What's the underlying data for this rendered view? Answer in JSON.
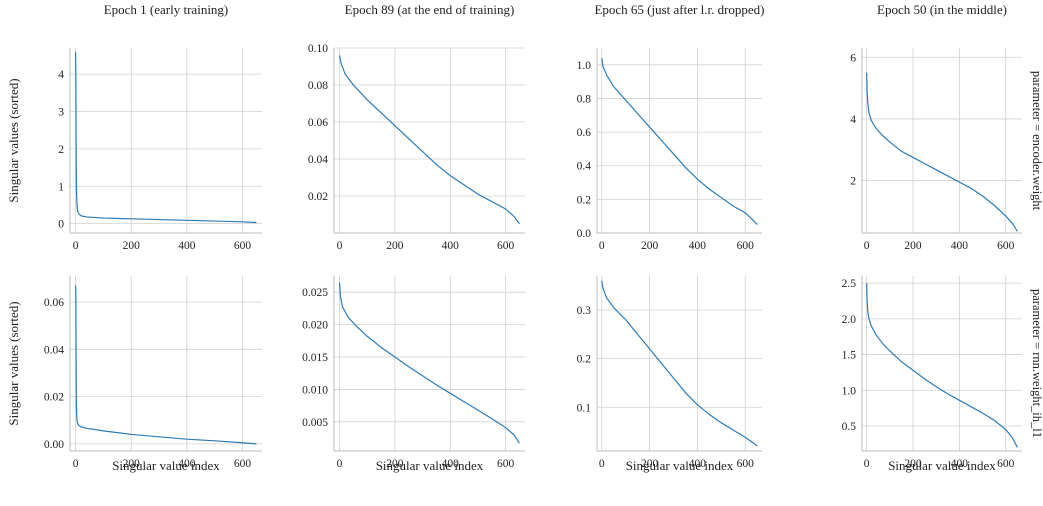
{
  "chart_data": {
    "type": "line",
    "facet_layout": {
      "rows": 2,
      "cols": 4
    },
    "colors": {
      "line": "#2b7bb9"
    },
    "xlabel": "Singular value index",
    "ylabel": "Singular values (sorted)",
    "col_titles": [
      "Epoch 1 (early training)",
      "Epoch 89 (at the end of training)",
      "Epoch 65 (just after l.r. dropped)",
      "Epoch 50 (in the middle)"
    ],
    "row_titles": [
      "parameter = encoder.weight",
      "parameter = rnn.weight_ih_l1"
    ],
    "xlim": [
      0,
      650
    ],
    "xticks": [
      0,
      200,
      400,
      600
    ],
    "panels": [
      {
        "row": 0,
        "col": 0,
        "ylim": [
          -0.25,
          4.7
        ],
        "yticks": [
          0,
          1,
          2,
          3,
          4
        ],
        "ytick_labels": [
          "0",
          "1",
          "2",
          "3",
          "4"
        ],
        "series": [
          {
            "x": [
              0,
              1,
              2,
              3,
              5,
              8,
              12,
              20,
              40,
              100,
              200,
              300,
              400,
              500,
              600,
              650
            ],
            "y": [
              4.6,
              4.0,
              2.2,
              1.0,
              0.5,
              0.32,
              0.26,
              0.21,
              0.18,
              0.15,
              0.13,
              0.11,
              0.09,
              0.07,
              0.05,
              0.03
            ]
          }
        ]
      },
      {
        "row": 0,
        "col": 1,
        "ylim": [
          0.0,
          0.1
        ],
        "yticks": [
          0.02,
          0.04,
          0.06,
          0.08,
          0.1
        ],
        "ytick_labels": [
          "0.02",
          "0.04",
          "0.06",
          "0.08",
          "0.10"
        ],
        "series": [
          {
            "x": [
              0,
              5,
              20,
              50,
              100,
              150,
              200,
              250,
              300,
              350,
              400,
              450,
              500,
              550,
              600,
              630,
              650
            ],
            "y": [
              0.096,
              0.092,
              0.086,
              0.08,
              0.072,
              0.065,
              0.058,
              0.051,
              0.044,
              0.037,
              0.031,
              0.026,
              0.021,
              0.017,
              0.013,
              0.009,
              0.005
            ]
          }
        ]
      },
      {
        "row": 0,
        "col": 2,
        "ylim": [
          0.0,
          1.1
        ],
        "yticks": [
          0.0,
          0.2,
          0.4,
          0.6,
          0.8,
          1.0
        ],
        "ytick_labels": [
          "0.0",
          "0.2",
          "0.4",
          "0.6",
          "0.8",
          "1.0"
        ],
        "series": [
          {
            "x": [
              0,
              5,
              20,
              50,
              100,
              150,
              200,
              250,
              300,
              350,
              400,
              450,
              500,
              550,
              600,
              630,
              650
            ],
            "y": [
              1.04,
              0.99,
              0.94,
              0.87,
              0.79,
              0.71,
              0.63,
              0.55,
              0.47,
              0.39,
              0.32,
              0.26,
              0.21,
              0.16,
              0.12,
              0.08,
              0.05
            ]
          }
        ]
      },
      {
        "row": 0,
        "col": 3,
        "ylim": [
          0.3,
          6.3
        ],
        "yticks": [
          2,
          4,
          6
        ],
        "ytick_labels": [
          "2",
          "4",
          "6"
        ],
        "series": [
          {
            "x": [
              0,
              2,
              5,
              10,
              20,
              40,
              70,
              100,
              150,
              200,
              250,
              300,
              350,
              400,
              450,
              500,
              550,
              600,
              630,
              650
            ],
            "y": [
              5.5,
              4.9,
              4.5,
              4.2,
              3.95,
              3.7,
              3.45,
              3.25,
              2.95,
              2.75,
              2.55,
              2.35,
              2.15,
              1.95,
              1.75,
              1.5,
              1.2,
              0.85,
              0.6,
              0.35
            ]
          }
        ]
      },
      {
        "row": 1,
        "col": 0,
        "ylim": [
          -0.003,
          0.071
        ],
        "yticks": [
          0.0,
          0.02,
          0.04,
          0.06
        ],
        "ytick_labels": [
          "0.00",
          "0.02",
          "0.04",
          "0.06"
        ],
        "series": [
          {
            "x": [
              0,
              1,
              2,
              3,
              5,
              8,
              12,
              20,
              40,
              100,
              200,
              300,
              400,
              500,
              600,
              650
            ],
            "y": [
              0.067,
              0.064,
              0.035,
              0.016,
              0.01,
              0.0085,
              0.0078,
              0.0072,
              0.0066,
              0.0055,
              0.004,
              0.003,
              0.002,
              0.0013,
              0.0005,
              0.0
            ]
          }
        ]
      },
      {
        "row": 1,
        "col": 1,
        "ylim": [
          0.0005,
          0.0275
        ],
        "yticks": [
          0.005,
          0.01,
          0.015,
          0.02,
          0.025
        ],
        "ytick_labels": [
          "0.005",
          "0.010",
          "0.015",
          "0.020",
          "0.025"
        ],
        "series": [
          {
            "x": [
              0,
              3,
              10,
              30,
              60,
              100,
              150,
              200,
              250,
              300,
              350,
              400,
              450,
              500,
              550,
              600,
              630,
              650
            ],
            "y": [
              0.0265,
              0.0245,
              0.0228,
              0.0212,
              0.0198,
              0.0182,
              0.0165,
              0.015,
              0.0135,
              0.0121,
              0.0107,
              0.0094,
              0.0081,
              0.0068,
              0.0055,
              0.0041,
              0.003,
              0.0017
            ]
          }
        ]
      },
      {
        "row": 1,
        "col": 2,
        "ylim": [
          0.01,
          0.37
        ],
        "yticks": [
          0.1,
          0.2,
          0.3
        ],
        "ytick_labels": [
          "0.1",
          "0.2",
          "0.3"
        ],
        "series": [
          {
            "x": [
              0,
              5,
              20,
              50,
              100,
              150,
              200,
              250,
              300,
              350,
              400,
              450,
              500,
              550,
              600,
              630,
              650
            ],
            "y": [
              0.36,
              0.345,
              0.325,
              0.305,
              0.28,
              0.25,
              0.22,
              0.19,
              0.16,
              0.13,
              0.105,
              0.085,
              0.068,
              0.053,
              0.038,
              0.028,
              0.02
            ]
          }
        ]
      },
      {
        "row": 1,
        "col": 3,
        "ylim": [
          0.15,
          2.6
        ],
        "yticks": [
          0.5,
          1.0,
          1.5,
          2.0,
          2.5
        ],
        "ytick_labels": [
          "0.5",
          "1.0",
          "1.5",
          "2.0",
          "2.5"
        ],
        "series": [
          {
            "x": [
              0,
              2,
              5,
              10,
              20,
              40,
              70,
              100,
              150,
              200,
              250,
              300,
              350,
              400,
              450,
              500,
              550,
              600,
              630,
              650
            ],
            "y": [
              2.5,
              2.25,
              2.1,
              2.0,
              1.9,
              1.78,
              1.65,
              1.55,
              1.4,
              1.28,
              1.16,
              1.05,
              0.95,
              0.86,
              0.77,
              0.68,
              0.58,
              0.45,
              0.33,
              0.2
            ]
          }
        ]
      }
    ]
  }
}
